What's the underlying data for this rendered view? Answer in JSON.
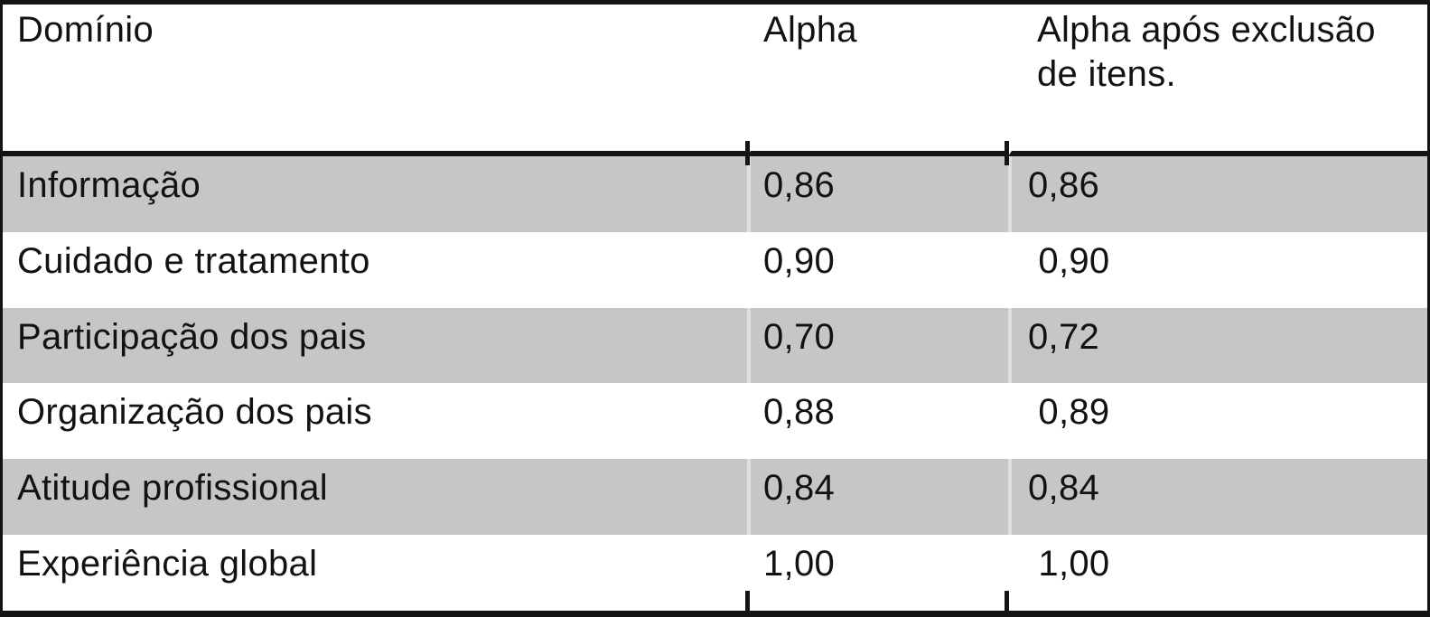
{
  "table": {
    "header": {
      "domain": "Domínio",
      "alpha": "Alpha",
      "alpha_after_exclusion": "Alpha após exclusão de itens."
    },
    "rows": [
      {
        "domain": "Informação",
        "alpha": "0,86",
        "alpha_after": "0,86"
      },
      {
        "domain": "Cuidado e tratamento",
        "alpha": "0,90",
        "alpha_after": " 0,90"
      },
      {
        "domain": "Participação dos pais",
        "alpha": "0,70",
        "alpha_after": "0,72"
      },
      {
        "domain": "Organização dos pais",
        "alpha": "0,88",
        "alpha_after": " 0,89"
      },
      {
        "domain": "Atitude profissional",
        "alpha": "0,84",
        "alpha_after": "0,84"
      },
      {
        "domain": "Experiência global",
        "alpha": "1,00",
        "alpha_after": " 1,00"
      }
    ]
  },
  "colors": {
    "row_shading": "#c6c6c6",
    "border": "#141414",
    "text": "#121212",
    "background": "#ffffff"
  }
}
